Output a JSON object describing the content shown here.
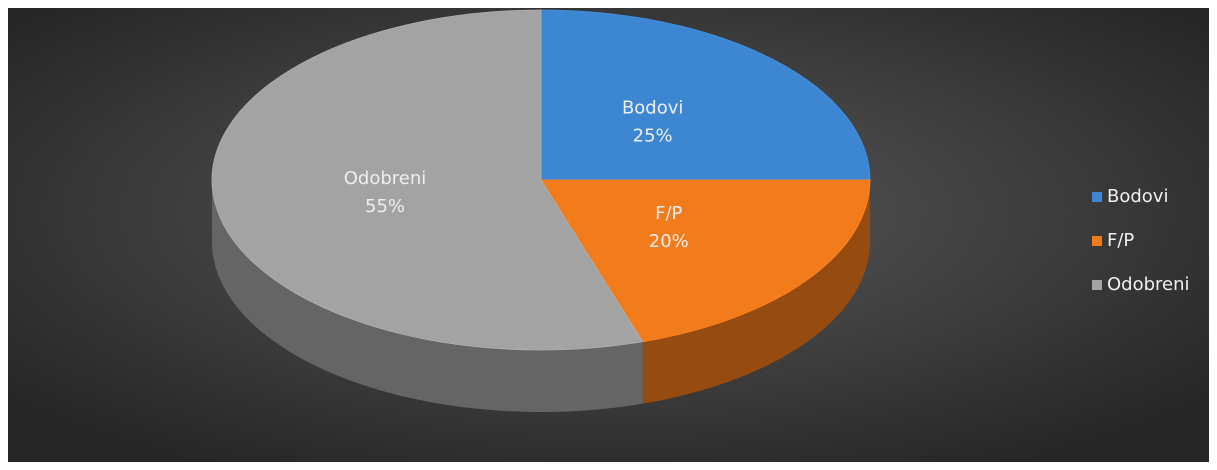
{
  "chart_data": {
    "type": "pie3d",
    "categories": [
      "Bodovi",
      "F/P",
      "Odobreni"
    ],
    "values": [
      25,
      20,
      55
    ],
    "value_labels": [
      "25%",
      "20%",
      "55%"
    ],
    "colors": [
      "#3d87d2",
      "#f27b1c",
      "#a3a3a3"
    ],
    "legend": "right"
  }
}
